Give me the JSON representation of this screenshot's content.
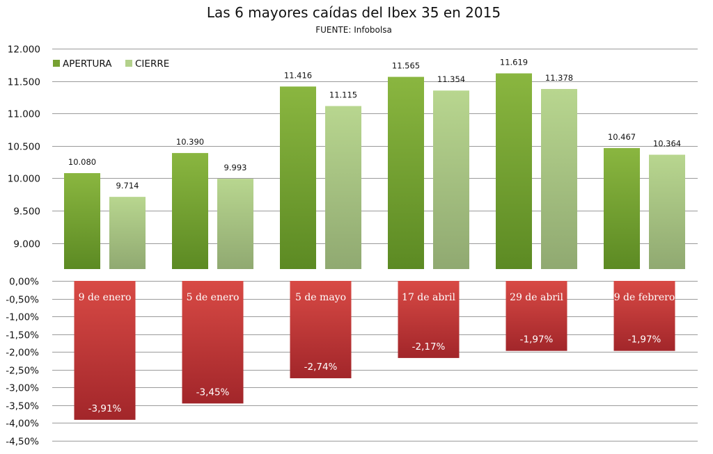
{
  "chart_data": [
    {
      "type": "bar",
      "title": "Las 6 mayores caídas del Ibex 35 en 2015",
      "subtitle": "FUENTE: Infobolsa",
      "categories": [
        "9 de enero",
        "5 de enero",
        "5 de mayo",
        "17 de abril",
        "29 de abril",
        "9 de febrero"
      ],
      "series": [
        {
          "name": "APERTURA",
          "values": [
            10080,
            10390,
            11416,
            11565,
            11619,
            10467
          ],
          "labels": [
            "10.080",
            "10.390",
            "11.416",
            "11.565",
            "11.619",
            "10.467"
          ],
          "color": "#77a132"
        },
        {
          "name": "CIERRE",
          "values": [
            9714,
            9993,
            11115,
            11354,
            11378,
            10364
          ],
          "labels": [
            "9.714",
            "9.993",
            "11.115",
            "11.354",
            "11.378",
            "10.364"
          ],
          "color": "#b3d18b"
        }
      ],
      "ylim": [
        8600,
        12000
      ],
      "yticks": [
        9000,
        9500,
        10000,
        10500,
        11000,
        11500,
        12000
      ],
      "ytick_labels": [
        "9.000",
        "9.500",
        "10.000",
        "10.500",
        "11.000",
        "11.500",
        "12.000"
      ],
      "legend": "top-left",
      "grid": true
    },
    {
      "type": "bar",
      "categories": [
        "9 de enero",
        "5 de enero",
        "5 de mayo",
        "17 de abril",
        "29 de abril",
        "9 de febrero"
      ],
      "values": [
        -3.91,
        -3.45,
        -2.74,
        -2.17,
        -1.97,
        -1.97
      ],
      "labels": [
        "-3,91%",
        "-3,45%",
        "-2,74%",
        "-2,17%",
        "-1,97%",
        "-1,97%"
      ],
      "color": "#c0392b",
      "ylim": [
        -4.5,
        0
      ],
      "yticks": [
        0,
        -0.5,
        -1,
        -1.5,
        -2,
        -2.5,
        -3,
        -3.5,
        -4,
        -4.5
      ],
      "ytick_labels": [
        "0,00%",
        "-0,50%",
        "-1,00%",
        "-1,50%",
        "-2,00%",
        "-2,50%",
        "-3,00%",
        "-3,50%",
        "-4,00%",
        "-4,50%"
      ],
      "grid": true
    }
  ]
}
